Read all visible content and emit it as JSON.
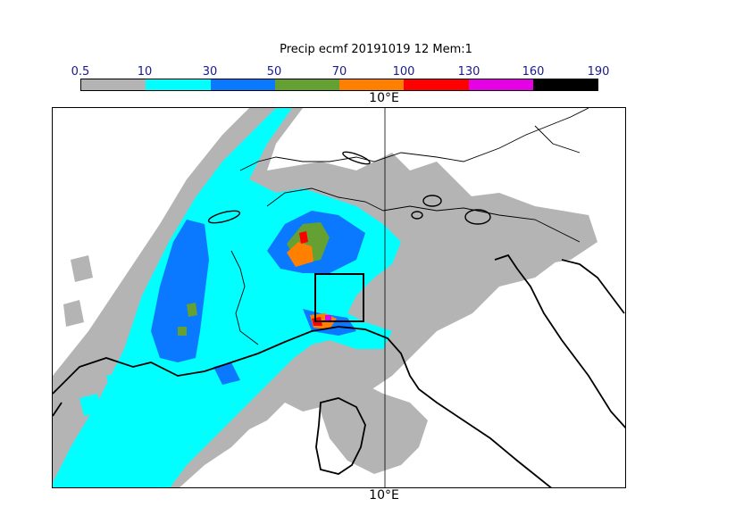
{
  "title": "Precip ecmf 20191019 12 Mem:1",
  "colorbar": {
    "labels": [
      "0.5",
      "10",
      "30",
      "50",
      "70",
      "100",
      "130",
      "160",
      "190"
    ],
    "colors": [
      "#b4b4b4",
      "#00ffff",
      "#0a78ff",
      "#64a032",
      "#ff8000",
      "#ff0000",
      "#e600e6",
      "#000000"
    ]
  },
  "lon_label_top": "10°E",
  "lon_label_bottom": "10°E"
}
